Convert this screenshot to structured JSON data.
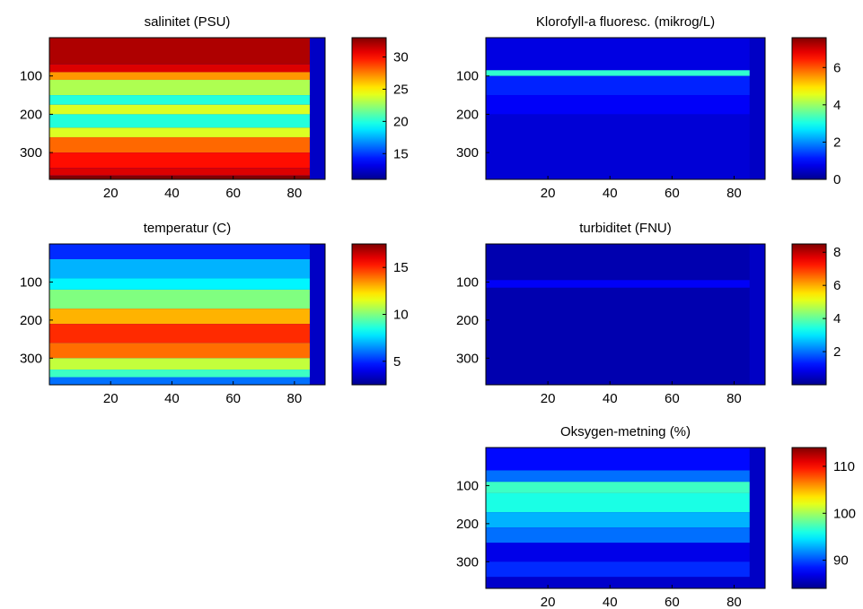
{
  "colormap": [
    "#00008f",
    "#0000ff",
    "#00ffff",
    "#ffff00",
    "#ff0000",
    "#800000"
  ],
  "chart_data": [
    {
      "type": "heatmap",
      "title": "salinitet (PSU)",
      "x_ticks": [
        20,
        40,
        60,
        80
      ],
      "y_ticks": [
        100,
        200,
        300
      ],
      "xlim": [
        0,
        90
      ],
      "ylim": [
        0,
        370
      ],
      "y_reversed": true,
      "data_xmax": 85,
      "colorbar": {
        "ticks": [
          15,
          20,
          25,
          30
        ],
        "clim": [
          11,
          33
        ]
      },
      "bands": [
        {
          "y0": 0,
          "y1": 70,
          "v": 32
        },
        {
          "y0": 70,
          "y1": 90,
          "v": 31
        },
        {
          "y0": 90,
          "y1": 110,
          "v": 27
        },
        {
          "y0": 110,
          "y1": 150,
          "v": 23
        },
        {
          "y0": 150,
          "y1": 175,
          "v": 20
        },
        {
          "y0": 175,
          "y1": 200,
          "v": 24
        },
        {
          "y0": 200,
          "y1": 235,
          "v": 20
        },
        {
          "y0": 235,
          "y1": 260,
          "v": 24
        },
        {
          "y0": 260,
          "y1": 300,
          "v": 28
        },
        {
          "y0": 300,
          "y1": 340,
          "v": 30
        },
        {
          "y0": 340,
          "y1": 360,
          "v": 31
        },
        {
          "y0": 360,
          "y1": 370,
          "v": 33
        }
      ]
    },
    {
      "type": "heatmap",
      "title": "Klorofyll-a fluoresc. (mikrog/L)",
      "x_ticks": [
        20,
        40,
        60,
        80
      ],
      "y_ticks": [
        100,
        200,
        300
      ],
      "xlim": [
        0,
        90
      ],
      "ylim": [
        0,
        370
      ],
      "y_reversed": true,
      "data_xmax": 85,
      "colorbar": {
        "ticks": [
          0,
          2,
          4,
          6
        ],
        "clim": [
          0,
          7.6
        ]
      },
      "bands": [
        {
          "y0": 0,
          "y1": 85,
          "v": 0.7
        },
        {
          "y0": 85,
          "y1": 100,
          "v": 3.2
        },
        {
          "y0": 100,
          "y1": 150,
          "v": 1.2
        },
        {
          "y0": 150,
          "y1": 200,
          "v": 0.9
        },
        {
          "y0": 200,
          "y1": 370,
          "v": 0.6
        }
      ]
    },
    {
      "type": "heatmap",
      "title": "temperatur (C)",
      "x_ticks": [
        20,
        40,
        60,
        80
      ],
      "y_ticks": [
        100,
        200,
        300
      ],
      "xlim": [
        0,
        90
      ],
      "ylim": [
        0,
        370
      ],
      "y_reversed": true,
      "data_xmax": 85,
      "colorbar": {
        "ticks": [
          5,
          10,
          15
        ],
        "clim": [
          2.5,
          17.5
        ]
      },
      "bands": [
        {
          "y0": 0,
          "y1": 40,
          "v": 5
        },
        {
          "y0": 40,
          "y1": 90,
          "v": 7
        },
        {
          "y0": 90,
          "y1": 120,
          "v": 8
        },
        {
          "y0": 120,
          "y1": 170,
          "v": 10
        },
        {
          "y0": 170,
          "y1": 210,
          "v": 13
        },
        {
          "y0": 210,
          "y1": 260,
          "v": 15
        },
        {
          "y0": 260,
          "y1": 300,
          "v": 14
        },
        {
          "y0": 300,
          "y1": 330,
          "v": 11
        },
        {
          "y0": 330,
          "y1": 350,
          "v": 9
        },
        {
          "y0": 350,
          "y1": 370,
          "v": 6
        }
      ]
    },
    {
      "type": "heatmap",
      "title": "turbiditet (FNU)",
      "x_ticks": [
        20,
        40,
        60,
        80
      ],
      "y_ticks": [
        100,
        200,
        300
      ],
      "xlim": [
        0,
        90
      ],
      "ylim": [
        0,
        370
      ],
      "y_reversed": true,
      "data_xmax": 85,
      "colorbar": {
        "ticks": [
          2,
          4,
          6,
          8
        ],
        "clim": [
          0,
          8.5
        ]
      },
      "bands": [
        {
          "y0": 0,
          "y1": 95,
          "v": 0.3
        },
        {
          "y0": 95,
          "y1": 115,
          "v": 1.0
        },
        {
          "y0": 115,
          "y1": 370,
          "v": 0.3
        }
      ]
    },
    {
      "type": "heatmap",
      "title": "Oksygen-metning (%)",
      "x_ticks": [
        20,
        40,
        60,
        80
      ],
      "y_ticks": [
        100,
        200,
        300
      ],
      "xlim": [
        0,
        90
      ],
      "ylim": [
        0,
        370
      ],
      "y_reversed": true,
      "data_xmax": 85,
      "colorbar": {
        "ticks": [
          90,
          100,
          110
        ],
        "clim": [
          84,
          114
        ]
      },
      "bands": [
        {
          "y0": 0,
          "y1": 60,
          "v": 88
        },
        {
          "y0": 60,
          "y1": 90,
          "v": 91
        },
        {
          "y0": 90,
          "y1": 120,
          "v": 97
        },
        {
          "y0": 120,
          "y1": 170,
          "v": 96
        },
        {
          "y0": 170,
          "y1": 210,
          "v": 93
        },
        {
          "y0": 210,
          "y1": 250,
          "v": 91
        },
        {
          "y0": 250,
          "y1": 300,
          "v": 87
        },
        {
          "y0": 300,
          "y1": 340,
          "v": 89
        },
        {
          "y0": 340,
          "y1": 370,
          "v": 86
        }
      ]
    }
  ]
}
